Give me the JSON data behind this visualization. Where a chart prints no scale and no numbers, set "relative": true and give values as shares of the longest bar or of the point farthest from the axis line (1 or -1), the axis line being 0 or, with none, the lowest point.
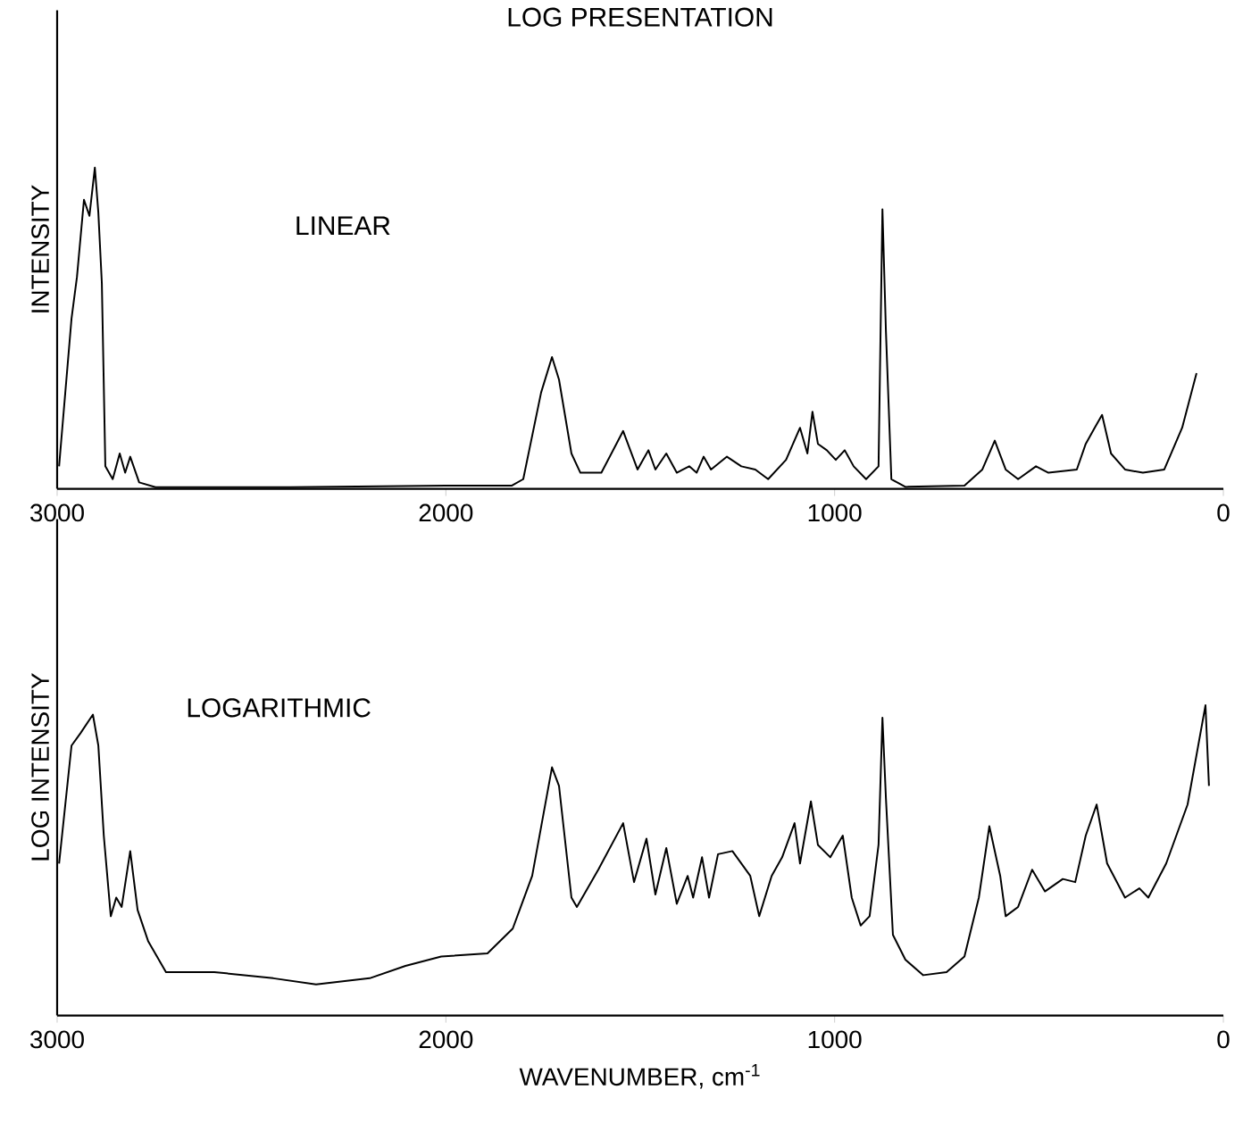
{
  "chart_data": [
    {
      "type": "line",
      "title": "LOG PRESENTATION",
      "ylabel": "INTENSITY",
      "annotations": [
        "LINEAR"
      ],
      "relative": true,
      "color": "#000000",
      "xlim": [
        3000,
        0
      ],
      "xticks": [
        3000,
        2000,
        1000,
        0
      ],
      "x": [
        2995,
        2963,
        2949,
        2931,
        2917,
        2903,
        2894,
        2885,
        2876,
        2857,
        2839,
        2825,
        2812,
        2789,
        2747,
        2400,
        2000,
        1830,
        1801,
        1755,
        1727,
        1709,
        1677,
        1654,
        1600,
        1544,
        1507,
        1479,
        1461,
        1433,
        1406,
        1374,
        1355,
        1337,
        1318,
        1277,
        1240,
        1204,
        1171,
        1125,
        1089,
        1070,
        1057,
        1043,
        1020,
        997,
        974,
        951,
        919,
        887,
        877,
        868,
        854,
        818,
        666,
        620,
        588,
        560,
        528,
        482,
        450,
        377,
        354,
        331,
        312,
        289,
        253,
        207,
        152,
        106,
        69
      ],
      "values": [
        0.07,
        0.53,
        0.66,
        0.9,
        0.85,
        1.0,
        0.86,
        0.64,
        0.07,
        0.03,
        0.11,
        0.05,
        0.1,
        0.02,
        0.005,
        0.005,
        0.01,
        0.01,
        0.03,
        0.3,
        0.41,
        0.34,
        0.11,
        0.05,
        0.05,
        0.18,
        0.06,
        0.12,
        0.06,
        0.11,
        0.05,
        0.07,
        0.05,
        0.1,
        0.06,
        0.1,
        0.07,
        0.06,
        0.03,
        0.09,
        0.19,
        0.11,
        0.24,
        0.14,
        0.12,
        0.09,
        0.12,
        0.07,
        0.03,
        0.07,
        0.87,
        0.49,
        0.03,
        0.006,
        0.01,
        0.06,
        0.15,
        0.06,
        0.03,
        0.07,
        0.05,
        0.06,
        0.14,
        0.19,
        0.23,
        0.11,
        0.06,
        0.05,
        0.06,
        0.19,
        0.36
      ]
    },
    {
      "type": "line",
      "ylabel": "LOG INTENSITY",
      "xlabel": "WAVENUMBER, cm$^{-1}$",
      "annotations": [
        "LOGARITHMIC"
      ],
      "relative": true,
      "color": "#000000",
      "xlim": [
        3000,
        0
      ],
      "xticks": [
        3000,
        2000,
        1000,
        0
      ],
      "x": [
        2995,
        2963,
        2940,
        2908,
        2894,
        2880,
        2862,
        2848,
        2834,
        2812,
        2793,
        2766,
        2720,
        2596,
        2444,
        2334,
        2196,
        2104,
        2012,
        1893,
        1828,
        1778,
        1727,
        1709,
        1677,
        1663,
        1608,
        1544,
        1516,
        1484,
        1461,
        1433,
        1406,
        1378,
        1364,
        1341,
        1323,
        1300,
        1263,
        1217,
        1194,
        1162,
        1135,
        1103,
        1089,
        1061,
        1043,
        1011,
        979,
        956,
        933,
        910,
        887,
        877,
        868,
        850,
        818,
        772,
        712,
        666,
        629,
        602,
        574,
        560,
        528,
        492,
        459,
        413,
        381,
        354,
        326,
        299,
        253,
        216,
        193,
        147,
        92,
        46,
        37
      ],
      "values": [
        0.49,
        0.87,
        0.91,
        0.97,
        0.87,
        0.58,
        0.32,
        0.38,
        0.35,
        0.53,
        0.34,
        0.24,
        0.14,
        0.14,
        0.12,
        0.1,
        0.12,
        0.16,
        0.19,
        0.2,
        0.28,
        0.45,
        0.8,
        0.74,
        0.38,
        0.35,
        0.47,
        0.62,
        0.43,
        0.57,
        0.39,
        0.54,
        0.36,
        0.45,
        0.38,
        0.51,
        0.38,
        0.52,
        0.53,
        0.45,
        0.32,
        0.45,
        0.51,
        0.62,
        0.49,
        0.69,
        0.55,
        0.51,
        0.58,
        0.38,
        0.29,
        0.32,
        0.55,
        0.96,
        0.7,
        0.26,
        0.18,
        0.13,
        0.14,
        0.19,
        0.38,
        0.61,
        0.45,
        0.32,
        0.35,
        0.47,
        0.4,
        0.44,
        0.43,
        0.58,
        0.68,
        0.49,
        0.38,
        0.41,
        0.38,
        0.49,
        0.68,
        1.0,
        0.74
      ]
    }
  ]
}
